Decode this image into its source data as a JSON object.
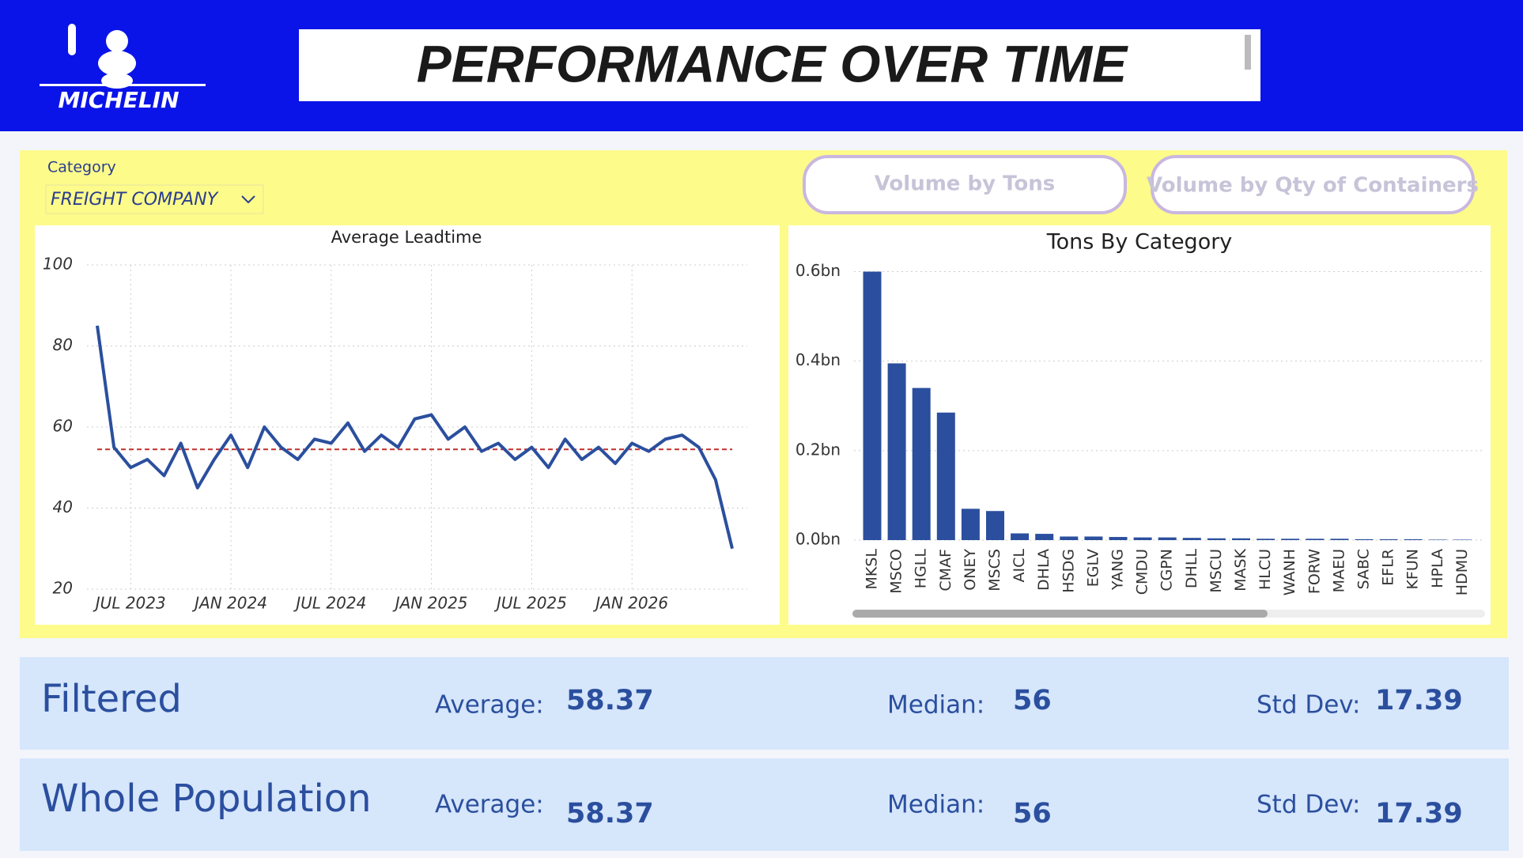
{
  "header": {
    "logo": "MICHELIN",
    "title": "PERFORMANCE OVER TIME"
  },
  "filter": {
    "label": "Category",
    "value": "FREIGHT COMPANY"
  },
  "buttons": [
    "Volume by Tons",
    "Volume by Qty of Containers"
  ],
  "chart_data": [
    {
      "type": "line",
      "title": "Average Leadtime",
      "x": [
        "2023-05",
        "2023-06",
        "2023-07",
        "2023-08",
        "2023-09",
        "2023-10",
        "2023-11",
        "2023-12",
        "2024-01",
        "2024-02",
        "2024-03",
        "2024-04",
        "2024-05",
        "2024-06",
        "2024-07",
        "2024-08",
        "2024-09",
        "2024-10",
        "2024-11",
        "2024-12",
        "2025-01",
        "2025-02",
        "2025-03",
        "2025-04",
        "2025-05",
        "2025-06",
        "2025-07",
        "2025-08",
        "2025-09",
        "2025-10",
        "2025-11",
        "2025-12",
        "2026-01",
        "2026-02",
        "2026-03",
        "2026-04",
        "2026-05",
        "2026-06",
        "2026-07"
      ],
      "series": [
        {
          "name": "Average Leadtime",
          "color": "#2b4f9e",
          "values": [
            85,
            55,
            50,
            52,
            48,
            56,
            45,
            52,
            58,
            50,
            60,
            55,
            52,
            57,
            56,
            61,
            54,
            58,
            55,
            62,
            63,
            57,
            60,
            54,
            56,
            52,
            55,
            50,
            57,
            52,
            55,
            51,
            56,
            54,
            57,
            58,
            55,
            47,
            30
          ]
        }
      ],
      "reference_line": {
        "value": 54.5,
        "color": "#c0302a"
      },
      "xlim": [
        "2023-05",
        "2026-07"
      ],
      "xticks": [
        {
          "value": "2023-07",
          "label": "JUL 2023"
        },
        {
          "value": "2024-01",
          "label": "JAN 2024"
        },
        {
          "value": "2024-07",
          "label": "JUL 2024"
        },
        {
          "value": "2025-01",
          "label": "JAN 2025"
        },
        {
          "value": "2025-07",
          "label": "JUL 2025"
        },
        {
          "value": "2026-01",
          "label": "JAN 2026"
        }
      ],
      "ylim": [
        20,
        100
      ],
      "yticks": [
        20,
        40,
        60,
        80,
        100
      ],
      "grid": true
    },
    {
      "type": "bar",
      "title": "Tons By Category",
      "categories": [
        "MKSL",
        "MSCO",
        "HGLL",
        "CMAF",
        "ONEY",
        "MSCS",
        "AICL",
        "DHLA",
        "HSDG",
        "EGLV",
        "YANG",
        "CMDU",
        "CGPN",
        "DHLL",
        "MSCU",
        "MASK",
        "HLCU",
        "WANH",
        "FORW",
        "MAEU",
        "SABC",
        "EFLR",
        "KFUN",
        "HPLA",
        "HDMU"
      ],
      "values": [
        0.6,
        0.395,
        0.34,
        0.285,
        0.07,
        0.065,
        0.015,
        0.014,
        0.008,
        0.008,
        0.007,
        0.006,
        0.006,
        0.005,
        0.004,
        0.004,
        0.003,
        0.003,
        0.003,
        0.003,
        0.002,
        0.002,
        0.002,
        0.001,
        0.001
      ],
      "color": "#2b4f9e",
      "ylim": [
        0,
        0.615
      ],
      "yticks": [
        {
          "value": 0,
          "label": "0.0bn"
        },
        {
          "value": 0.2,
          "label": "0.2bn"
        },
        {
          "value": 0.4,
          "label": "0.4bn"
        },
        {
          "value": 0.6,
          "label": "0.6bn"
        }
      ],
      "grid": true
    }
  ],
  "stats": [
    {
      "label": "Filtered",
      "average_label": "Average:",
      "average": 58.37,
      "median_label": "Median:",
      "median": 56,
      "std_label": "Std Dev:",
      "std": 17.39
    },
    {
      "label": "Whole Population",
      "average_label": "Average:",
      "average": 58.37,
      "median_label": "Median:",
      "median": 56,
      "std_label": "Std Dev:",
      "std": 17.39
    }
  ]
}
